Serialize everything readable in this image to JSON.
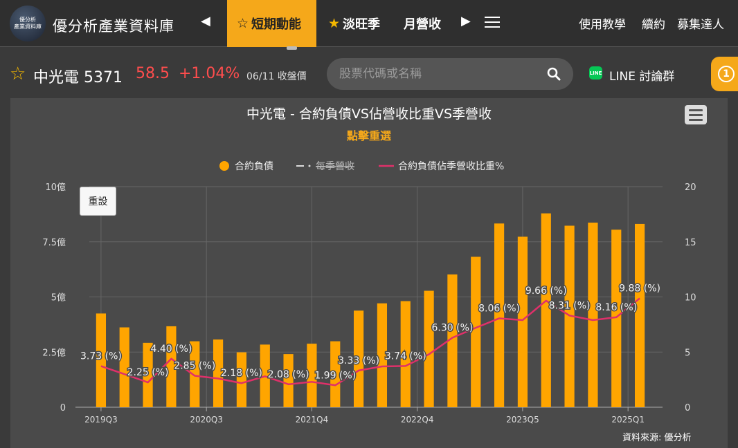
{
  "header": {
    "logo_text_1": "優分析",
    "logo_text_2": "產業資料庫",
    "brand": "優分析產業資料庫",
    "tabs": [
      {
        "label": "短期動能",
        "active": true,
        "star": true
      },
      {
        "label": "淡旺季",
        "active": false,
        "star": true
      },
      {
        "label": "月營收",
        "active": false,
        "star": false
      }
    ],
    "links": [
      "使用教學",
      "續約",
      "募集達人"
    ]
  },
  "stock": {
    "name": "中光電 5371",
    "price": "58.5",
    "change": "+1.04%",
    "date": "06/11 收盤價"
  },
  "search": {
    "placeholder": "股票代碼或名稱"
  },
  "line_group": {
    "badge": "LINE",
    "label": "LINE 討論群"
  },
  "notification": {
    "count": "1"
  },
  "colors": {
    "accent": "#f5a81a",
    "up": "#ff4d4d",
    "ratio_line": "#e0306a",
    "bar": "#ffa500"
  },
  "chart_data": {
    "type": "bar+line",
    "title": "中光電 - 合約負債VS佔營收比重VS季營收",
    "subtitle": "點擊重選",
    "reset_label": "重設",
    "source": "資料來源: 優分析",
    "legend": [
      "合約負債",
      "每季營收",
      "合約負債佔季營收比重%"
    ],
    "legend_hidden": [
      false,
      true,
      false
    ],
    "y_left_ticks": [
      "0",
      "2.5億",
      "5億",
      "7.5億",
      "10億"
    ],
    "y_left_range": [
      0,
      10
    ],
    "y_right_ticks": [
      "0",
      "5",
      "10",
      "15",
      "20"
    ],
    "y_right_range": [
      0,
      20
    ],
    "x_tick_labels": [
      "2019Q3",
      "2020Q3",
      "2021Q4",
      "2022Q4",
      "2023Q5",
      "2025Q1"
    ],
    "x_tick_index": [
      0,
      4.5,
      9,
      13.5,
      18,
      22.5
    ],
    "series": [
      {
        "name": "合約負債",
        "type": "bar",
        "unit": "億",
        "values": [
          4.25,
          3.62,
          2.92,
          3.67,
          2.99,
          3.07,
          2.49,
          2.84,
          2.41,
          2.88,
          2.99,
          4.38,
          4.71,
          4.81,
          5.28,
          6.02,
          6.82,
          8.33,
          7.73,
          8.79,
          8.23,
          8.37,
          8.05,
          8.31
        ]
      },
      {
        "name": "合約負債佔季營收比重%",
        "type": "line",
        "unit": "%",
        "values": [
          3.73,
          3.0,
          2.25,
          4.4,
          2.85,
          2.6,
          2.18,
          2.8,
          2.08,
          2.3,
          1.99,
          3.33,
          3.7,
          3.74,
          4.8,
          6.3,
          7.2,
          8.06,
          7.9,
          9.66,
          8.31,
          7.9,
          8.16,
          9.88
        ]
      }
    ],
    "data_labels": [
      {
        "index": 0,
        "text": "3.73 (%)"
      },
      {
        "index": 2,
        "text": "2.25 (%)"
      },
      {
        "index": 3,
        "text": "4.40 (%)"
      },
      {
        "index": 4,
        "text": "2.85 (%)"
      },
      {
        "index": 6,
        "text": "2.18 (%)"
      },
      {
        "index": 8,
        "text": "2.08 (%)"
      },
      {
        "index": 10,
        "text": "1.99 (%)"
      },
      {
        "index": 11,
        "text": "3.33 (%)"
      },
      {
        "index": 13,
        "text": "3.74 (%)"
      },
      {
        "index": 15,
        "text": "6.30 (%)"
      },
      {
        "index": 17,
        "text": "8.06 (%)"
      },
      {
        "index": 19,
        "text": "9.66 (%)"
      },
      {
        "index": 20,
        "text": "8.31 (%)"
      },
      {
        "index": 22,
        "text": "8.16 (%)"
      },
      {
        "index": 23,
        "text": "9.88 (%)"
      }
    ],
    "grid": true
  }
}
